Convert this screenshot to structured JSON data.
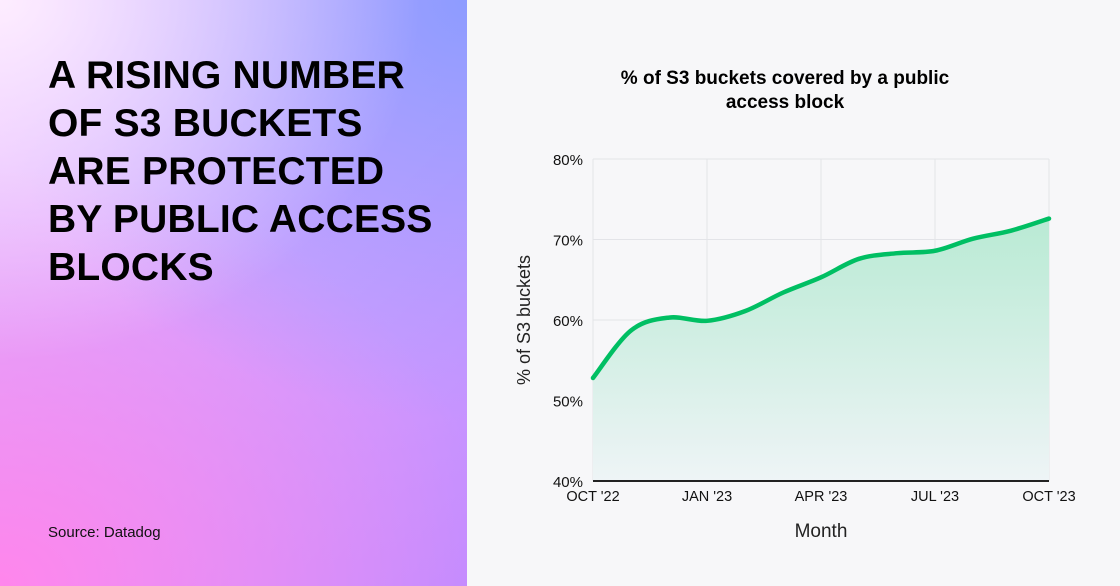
{
  "headline": "A RISING NUMBER OF S3 BUCKETS ARE PROTECTED BY PUBLIC ACCESS BLOCKS",
  "source": "Source: Datadog",
  "chart_data": {
    "type": "area",
    "title": "% of S3 buckets covered by a public access block",
    "xlabel": "Month",
    "ylabel": "% of S3 buckets",
    "x": [
      "2022-10",
      "2022-11",
      "2022-12",
      "2023-01",
      "2023-02",
      "2023-03",
      "2023-04",
      "2023-05",
      "2023-06",
      "2023-07",
      "2023-08",
      "2023-09",
      "2023-10"
    ],
    "x_ticks": [
      "OCT '22",
      "JAN '23",
      "APR '23",
      "JUL '23",
      "OCT '23"
    ],
    "y_ticks": [
      "40%",
      "50%",
      "60%",
      "70%",
      "80%"
    ],
    "ylim": [
      40,
      80
    ],
    "values": [
      52.8,
      58.7,
      60.3,
      59.9,
      61.1,
      63.4,
      65.3,
      67.6,
      68.3,
      68.6,
      70.1,
      71.1,
      72.6
    ],
    "grid": true,
    "line_color": "#00bf63",
    "fill_color": "#b9ead4"
  }
}
